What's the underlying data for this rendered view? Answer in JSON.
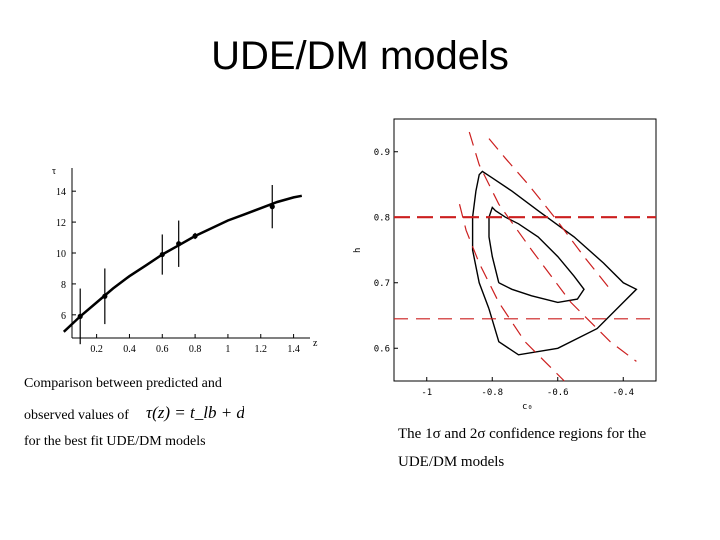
{
  "slide": {
    "title": "UDE/DM models"
  },
  "left_figure": {
    "y_axis_label": "τ",
    "x_axis_label": "z",
    "x_ticks": [
      "0.2",
      "0.4",
      "0.6",
      "0.8",
      "1",
      "1.2",
      "1.4"
    ],
    "y_ticks": [
      "6",
      "8",
      "10",
      "12",
      "14"
    ],
    "caption_line1": "Comparison between predicted and",
    "caption_line2": "observed values of",
    "caption_line3": "for the best fit UDE/DM models",
    "formula": "τ(z) = t_lb + df"
  },
  "right_figure": {
    "y_axis_label": "h",
    "x_axis_label": "c₀",
    "x_ticks": [
      "-1",
      "-0.8",
      "-0.6",
      "-0.4"
    ],
    "y_ticks": [
      "0.9",
      "0.8",
      "0.7",
      "0.6"
    ],
    "caption_line1": "The 1σ and 2σ confidence regions for the",
    "caption_line2": "UDE/DM models"
  },
  "chart_data": [
    {
      "type": "scatter",
      "x": [
        0.1,
        0.25,
        0.6,
        0.7,
        0.8,
        1.27
      ],
      "y": [
        5.9,
        7.2,
        9.9,
        10.6,
        11.1,
        13.0
      ],
      "y_error": [
        1.8,
        1.8,
        1.3,
        1.5,
        0.2,
        1.4
      ],
      "fit_curve": {
        "x": [
          0.0,
          0.1,
          0.2,
          0.3,
          0.4,
          0.5,
          0.6,
          0.7,
          0.8,
          0.9,
          1.0,
          1.1,
          1.2,
          1.3,
          1.4,
          1.45
        ],
        "y": [
          4.9,
          5.9,
          6.8,
          7.7,
          8.5,
          9.2,
          9.9,
          10.5,
          11.1,
          11.6,
          12.1,
          12.5,
          12.9,
          13.3,
          13.6,
          13.7
        ]
      },
      "xlim": [
        0.05,
        1.5
      ],
      "ylim": [
        4.5,
        15.5
      ]
    },
    {
      "type": "line",
      "xlim": [
        -1.1,
        -0.3
      ],
      "ylim": [
        0.55,
        0.95
      ],
      "lines": [
        {
          "style": "solid",
          "x": [
            -0.81,
            -0.84,
            -0.86,
            -0.86,
            -0.85,
            -0.84,
            -0.83,
            -0.8,
            -0.74,
            -0.66,
            -0.55,
            -0.46,
            -0.4,
            -0.36,
            -0.4,
            -0.48,
            -0.6,
            -0.72,
            -0.78,
            -0.81
          ],
          "y": [
            0.66,
            0.7,
            0.75,
            0.8,
            0.84,
            0.865,
            0.87,
            0.86,
            0.84,
            0.81,
            0.77,
            0.73,
            0.7,
            0.69,
            0.67,
            0.63,
            0.6,
            0.59,
            0.61,
            0.66
          ]
        },
        {
          "style": "solid",
          "x": [
            -0.78,
            -0.8,
            -0.81,
            -0.81,
            -0.8,
            -0.79,
            -0.76,
            -0.72,
            -0.66,
            -0.6,
            -0.55,
            -0.52,
            -0.54,
            -0.6,
            -0.68,
            -0.74,
            -0.78
          ],
          "y": [
            0.7,
            0.74,
            0.77,
            0.8,
            0.815,
            0.81,
            0.8,
            0.79,
            0.77,
            0.74,
            0.71,
            0.69,
            0.675,
            0.67,
            0.68,
            0.69,
            0.7
          ]
        },
        {
          "style": "dashed",
          "x": [
            -0.87,
            -0.84,
            -0.78,
            -0.68,
            -0.56,
            -0.44,
            -0.36
          ],
          "y": [
            0.93,
            0.88,
            0.82,
            0.75,
            0.67,
            0.61,
            0.58
          ]
        },
        {
          "style": "dashed",
          "x": [
            -0.9,
            -0.88,
            -0.84,
            -0.78,
            -0.7,
            -0.64,
            -0.58
          ],
          "y": [
            0.82,
            0.78,
            0.73,
            0.67,
            0.61,
            0.58,
            0.55
          ]
        },
        {
          "style": "dashed",
          "x": [
            -0.81,
            -0.76,
            -0.69,
            -0.61,
            -0.52,
            -0.44
          ],
          "y": [
            0.92,
            0.89,
            0.85,
            0.8,
            0.74,
            0.69
          ]
        },
        {
          "style": "dashed-long",
          "x": [
            -1.1,
            -0.3
          ],
          "y": [
            0.8,
            0.8
          ]
        },
        {
          "style": "dashed",
          "x": [
            -1.1,
            -0.3
          ],
          "y": [
            0.645,
            0.645
          ]
        }
      ]
    }
  ]
}
